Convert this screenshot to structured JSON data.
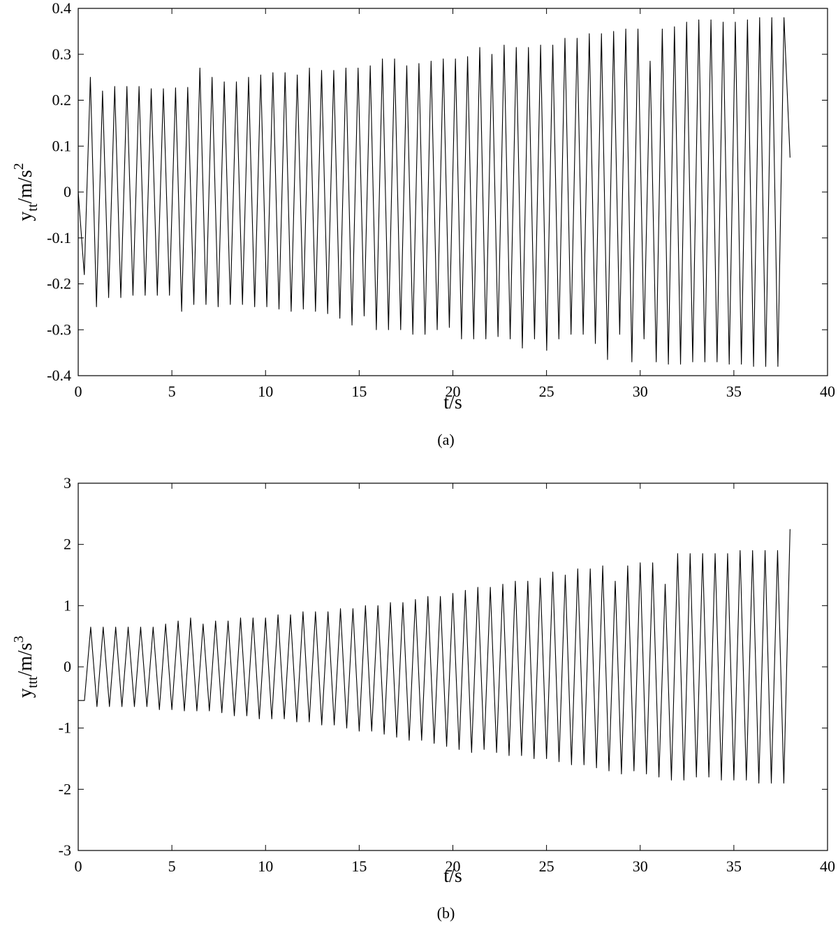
{
  "chart_data": [
    {
      "type": "line",
      "caption": "(a)",
      "xlabel": "t/s",
      "ylabel": {
        "base": "y",
        "sub": "tt",
        "unit": "/m/s",
        "sup": "2"
      },
      "xlim": [
        0,
        40
      ],
      "ylim": [
        -0.4,
        0.4
      ],
      "xticks": [
        "0",
        "5",
        "10",
        "15",
        "20",
        "25",
        "30",
        "35",
        "40"
      ],
      "yticks": [
        "0.4",
        "0.3",
        "0.2",
        "0.1",
        "0",
        "-0.1",
        "-0.2",
        "-0.3",
        "-0.4"
      ],
      "grid": false,
      "series": [
        {
          "t_start": 0,
          "t_end": 38,
          "start_value": 0,
          "end_value": 0.075,
          "initial_trough": -0.18,
          "peaks": [
            0.25,
            0.22,
            0.23,
            0.23,
            0.23,
            0.225,
            0.225,
            0.227,
            0.228,
            0.27,
            0.25,
            0.24,
            0.24,
            0.25,
            0.255,
            0.26,
            0.26,
            0.255,
            0.27,
            0.265,
            0.265,
            0.27,
            0.27,
            0.275,
            0.29,
            0.29,
            0.275,
            0.28,
            0.285,
            0.29,
            0.29,
            0.295,
            0.315,
            0.3,
            0.32,
            0.315,
            0.315,
            0.32,
            0.32,
            0.335,
            0.335,
            0.345,
            0.345,
            0.35,
            0.355,
            0.355,
            0.285,
            0.355,
            0.36,
            0.37,
            0.375,
            0.375,
            0.37,
            0.37,
            0.375,
            0.38,
            0.38,
            0.38
          ],
          "troughs": [
            -0.25,
            -0.23,
            -0.23,
            -0.225,
            -0.225,
            -0.225,
            -0.225,
            -0.26,
            -0.245,
            -0.245,
            -0.25,
            -0.245,
            -0.245,
            -0.25,
            -0.25,
            -0.255,
            -0.26,
            -0.255,
            -0.26,
            -0.265,
            -0.275,
            -0.29,
            -0.27,
            -0.3,
            -0.3,
            -0.3,
            -0.31,
            -0.31,
            -0.3,
            -0.295,
            -0.32,
            -0.32,
            -0.32,
            -0.315,
            -0.32,
            -0.34,
            -0.32,
            -0.345,
            -0.32,
            -0.31,
            -0.31,
            -0.33,
            -0.365,
            -0.31,
            -0.37,
            -0.32,
            -0.37,
            -0.375,
            -0.375,
            -0.37,
            -0.37,
            -0.37,
            -0.375,
            -0.375,
            -0.38,
            -0.38,
            -0.38
          ]
        }
      ]
    },
    {
      "type": "line",
      "caption": "(b)",
      "xlabel": "t/s",
      "ylabel": {
        "base": "y",
        "sub": "ttt",
        "unit": "/m/s",
        "sup": "3"
      },
      "xlim": [
        0,
        40
      ],
      "ylim": [
        -3,
        3
      ],
      "xticks": [
        "0",
        "5",
        "10",
        "15",
        "20",
        "25",
        "30",
        "35",
        "40"
      ],
      "yticks": [
        "3",
        "2",
        "1",
        "0",
        "-1",
        "-2",
        "-3"
      ],
      "grid": false,
      "series": [
        {
          "t_start": 0,
          "t_end": 38,
          "start_value": -0.55,
          "end_value": 2.25,
          "initial_trough": -0.55,
          "peaks": [
            0.65,
            0.65,
            0.65,
            0.65,
            0.65,
            0.65,
            0.7,
            0.75,
            0.8,
            0.7,
            0.75,
            0.75,
            0.8,
            0.8,
            0.8,
            0.85,
            0.85,
            0.9,
            0.9,
            0.9,
            0.95,
            0.95,
            1.0,
            1.0,
            1.05,
            1.05,
            1.1,
            1.15,
            1.15,
            1.2,
            1.25,
            1.3,
            1.3,
            1.35,
            1.4,
            1.4,
            1.45,
            1.55,
            1.5,
            1.6,
            1.6,
            1.65,
            1.4,
            1.65,
            1.7,
            1.7,
            1.35,
            1.85,
            1.85,
            1.85,
            1.85,
            1.85,
            1.9,
            1.9,
            1.9,
            1.9
          ],
          "troughs": [
            -0.65,
            -0.65,
            -0.65,
            -0.65,
            -0.65,
            -0.7,
            -0.7,
            -0.72,
            -0.72,
            -0.72,
            -0.75,
            -0.8,
            -0.8,
            -0.85,
            -0.85,
            -0.85,
            -0.9,
            -0.9,
            -0.95,
            -0.95,
            -1.0,
            -1.05,
            -1.05,
            -1.1,
            -1.15,
            -1.2,
            -1.2,
            -1.25,
            -1.3,
            -1.35,
            -1.4,
            -1.35,
            -1.4,
            -1.45,
            -1.45,
            -1.5,
            -1.5,
            -1.55,
            -1.6,
            -1.6,
            -1.65,
            -1.7,
            -1.75,
            -1.7,
            -1.75,
            -1.8,
            -1.85,
            -1.85,
            -1.8,
            -1.8,
            -1.85,
            -1.85,
            -1.85,
            -1.9,
            -1.9,
            -1.9
          ]
        }
      ]
    }
  ]
}
